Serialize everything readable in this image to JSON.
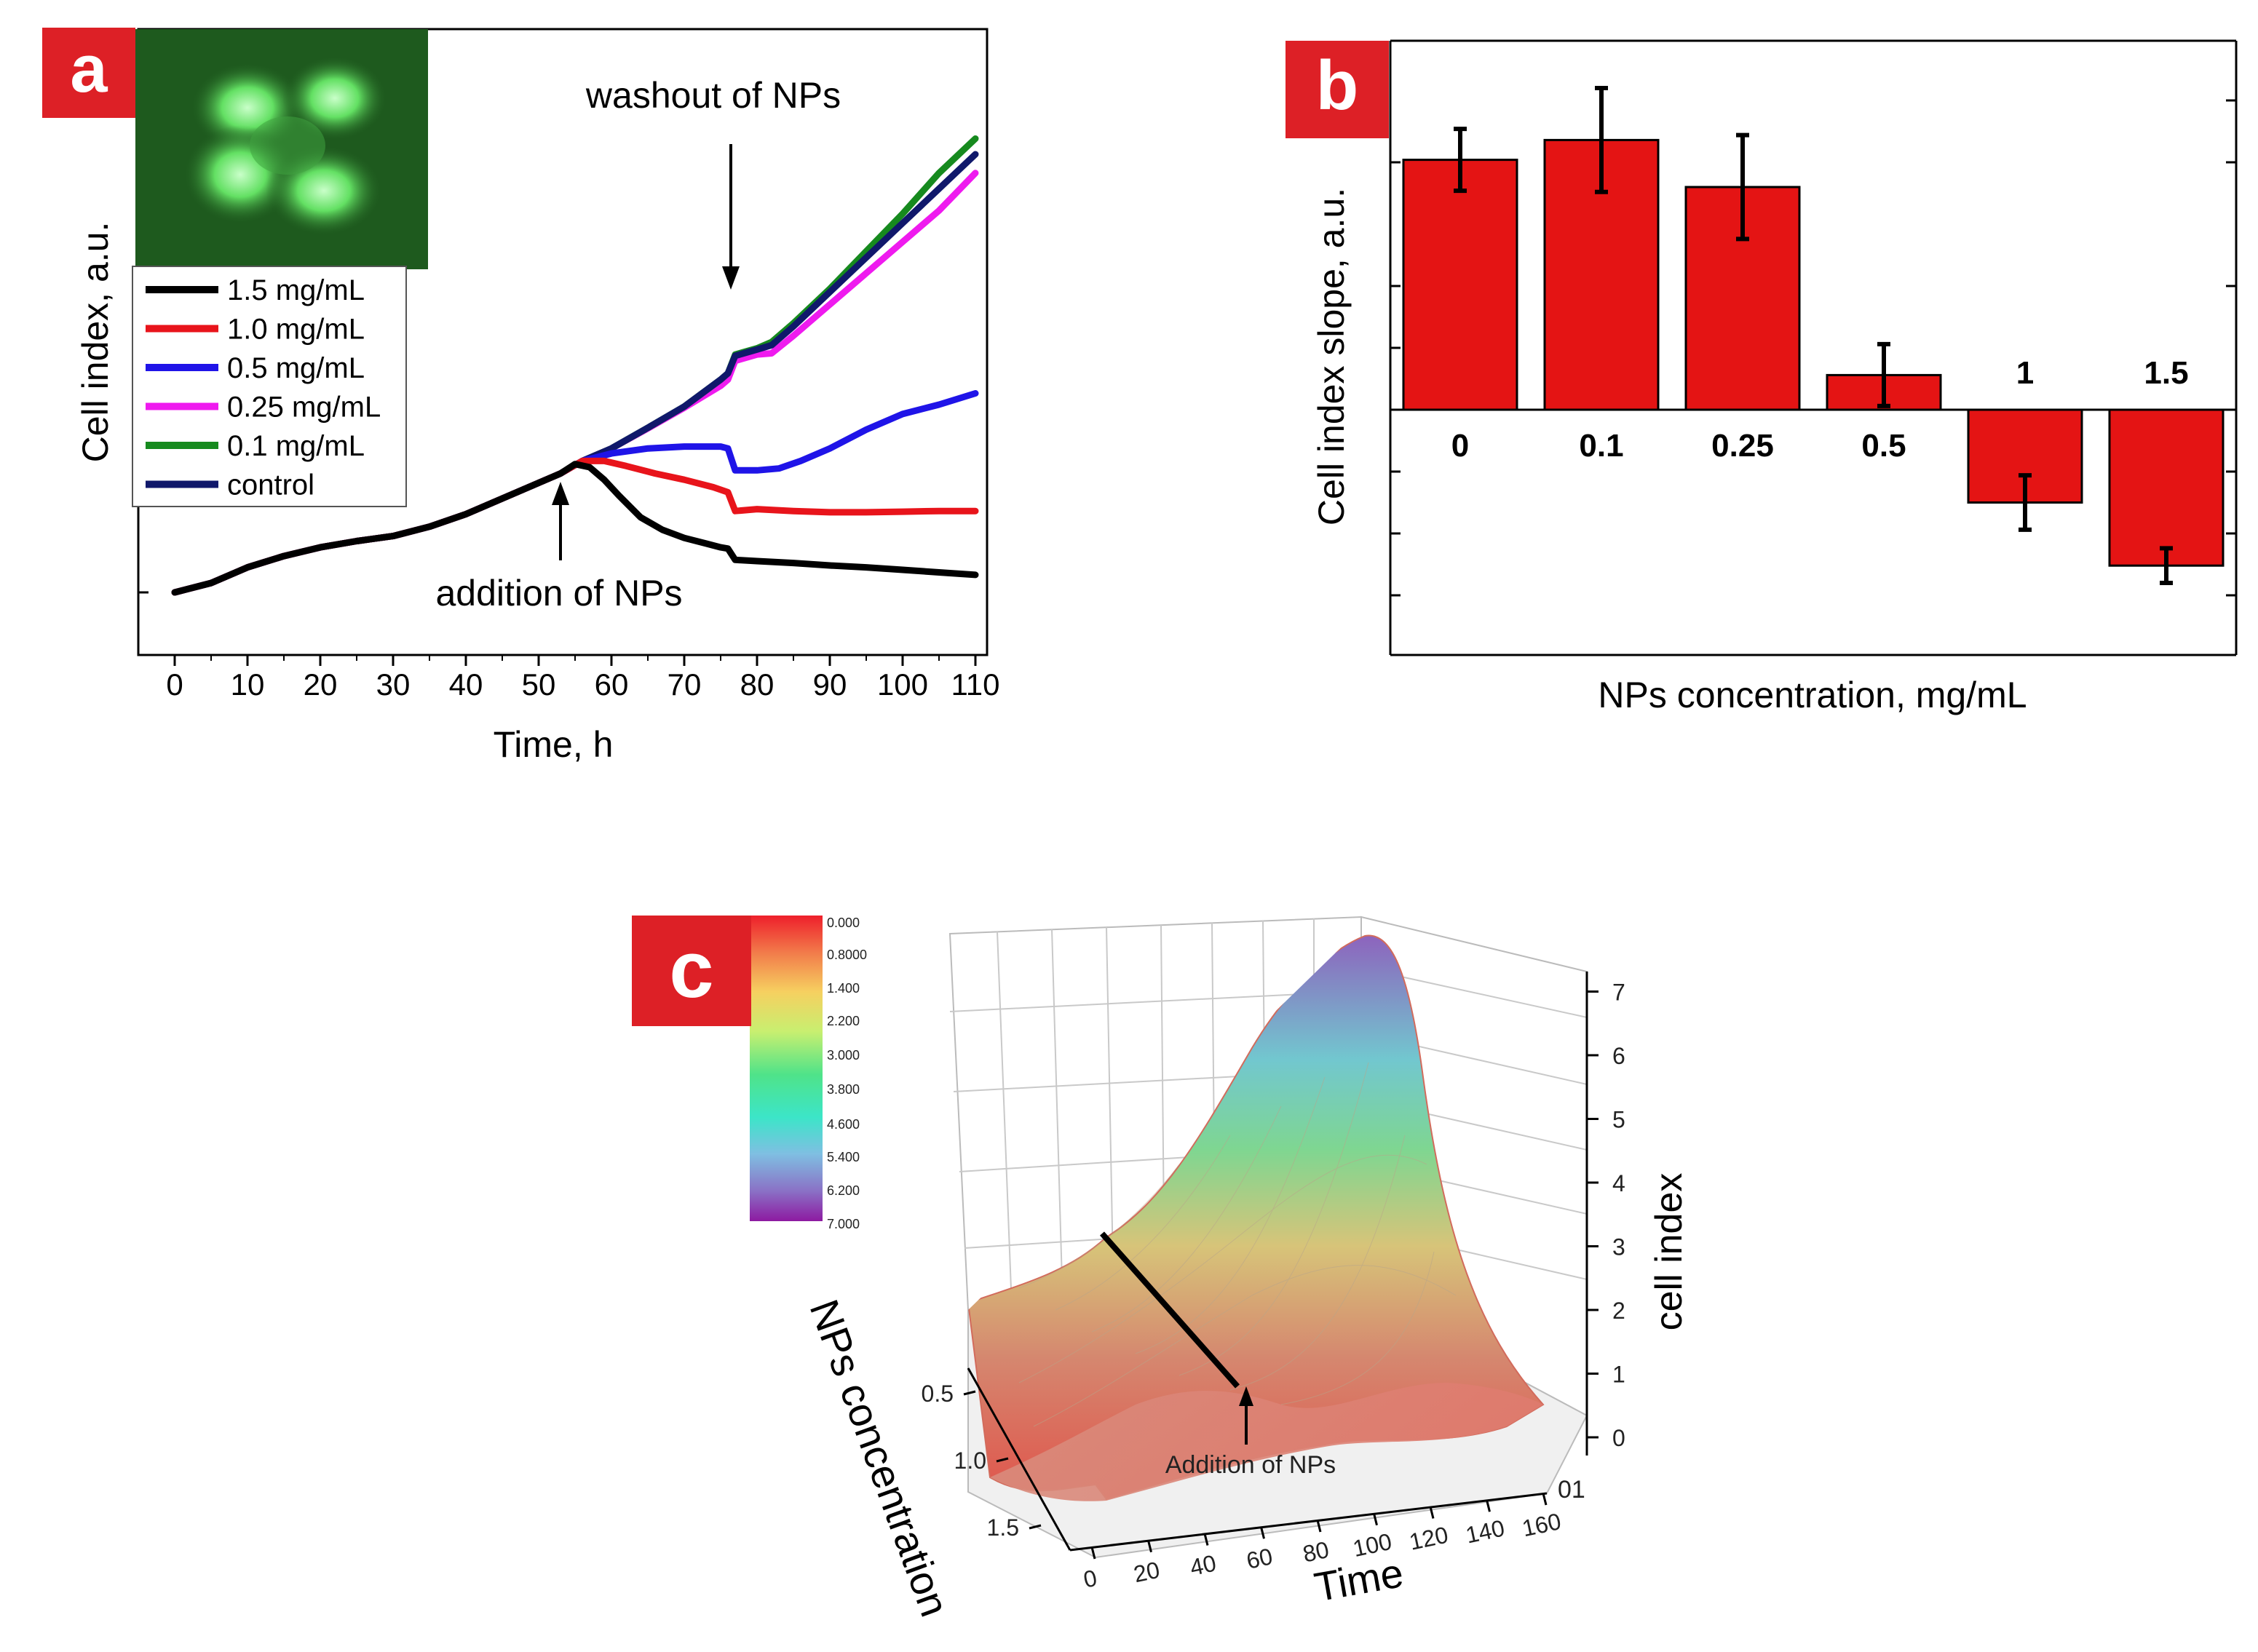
{
  "colors": {
    "badge": "#dd2026",
    "bar": "#e41414",
    "inset_bg": "#1e5a1e",
    "cell": "#7ef07e"
  },
  "chart_data": [
    {
      "panel": "a",
      "type": "line",
      "xlabel": "Time, h",
      "ylabel": "Cell index, a.u.",
      "xlim": [
        -5,
        110
      ],
      "ylim": [
        0,
        1.0
      ],
      "xticks": [
        0,
        10,
        20,
        30,
        40,
        50,
        60,
        70,
        80,
        90,
        100,
        110
      ],
      "legend": "top-left",
      "annotations": [
        "washout of NPs",
        "addition of NPs"
      ],
      "series": [
        {
          "name": "1.5 mg/mL",
          "color": "#000000",
          "x": [
            0,
            5,
            10,
            15,
            20,
            25,
            30,
            35,
            40,
            45,
            50,
            53,
            55,
            57,
            59,
            61,
            64,
            67,
            70,
            73,
            75,
            76,
            77,
            80,
            85,
            90,
            95,
            100,
            105,
            110
          ],
          "y": [
            0.1,
            0.115,
            0.14,
            0.158,
            0.172,
            0.182,
            0.19,
            0.205,
            0.225,
            0.25,
            0.275,
            0.29,
            0.305,
            0.3,
            0.28,
            0.255,
            0.22,
            0.2,
            0.187,
            0.178,
            0.172,
            0.17,
            0.152,
            0.15,
            0.147,
            0.143,
            0.14,
            0.136,
            0.132,
            0.128
          ]
        },
        {
          "name": "1.0 mg/mL",
          "color": "#e8141b",
          "x": [
            0,
            5,
            10,
            15,
            20,
            25,
            30,
            35,
            40,
            45,
            50,
            53,
            56,
            59,
            62,
            66,
            70,
            74,
            76,
            77,
            80,
            85,
            90,
            95,
            100,
            105,
            110
          ],
          "y": [
            0.1,
            0.115,
            0.14,
            0.158,
            0.172,
            0.182,
            0.19,
            0.205,
            0.225,
            0.25,
            0.275,
            0.29,
            0.31,
            0.31,
            0.302,
            0.29,
            0.28,
            0.268,
            0.26,
            0.23,
            0.233,
            0.23,
            0.228,
            0.228,
            0.229,
            0.23,
            0.23
          ]
        },
        {
          "name": "0.5 mg/mL",
          "color": "#1f14e8",
          "x": [
            0,
            5,
            10,
            15,
            20,
            25,
            30,
            35,
            40,
            45,
            50,
            53,
            56,
            60,
            65,
            70,
            75,
            76,
            77,
            80,
            83,
            86,
            90,
            95,
            100,
            105,
            110
          ],
          "y": [
            0.1,
            0.115,
            0.14,
            0.158,
            0.172,
            0.182,
            0.19,
            0.205,
            0.225,
            0.25,
            0.275,
            0.29,
            0.31,
            0.322,
            0.33,
            0.333,
            0.333,
            0.33,
            0.295,
            0.295,
            0.298,
            0.31,
            0.33,
            0.36,
            0.385,
            0.4,
            0.418
          ]
        },
        {
          "name": "0.25 mg/mL",
          "color": "#ef1aef",
          "x": [
            0,
            5,
            10,
            15,
            20,
            25,
            30,
            35,
            40,
            45,
            50,
            53,
            56,
            60,
            65,
            70,
            75,
            76,
            77,
            80,
            82,
            85,
            90,
            95,
            100,
            105,
            110
          ],
          "y": [
            0.1,
            0.115,
            0.14,
            0.158,
            0.172,
            0.182,
            0.19,
            0.205,
            0.225,
            0.25,
            0.275,
            0.29,
            0.31,
            0.33,
            0.362,
            0.395,
            0.43,
            0.44,
            0.47,
            0.48,
            0.482,
            0.51,
            0.56,
            0.61,
            0.66,
            0.71,
            0.77
          ]
        },
        {
          "name": "0.1 mg/mL",
          "color": "#168a1e",
          "x": [
            0,
            5,
            10,
            15,
            20,
            25,
            30,
            35,
            40,
            45,
            50,
            53,
            56,
            60,
            65,
            70,
            75,
            76,
            77,
            80,
            82,
            85,
            90,
            95,
            100,
            105,
            110
          ],
          "y": [
            0.1,
            0.115,
            0.14,
            0.158,
            0.172,
            0.182,
            0.19,
            0.205,
            0.225,
            0.25,
            0.275,
            0.29,
            0.31,
            0.33,
            0.363,
            0.397,
            0.44,
            0.45,
            0.48,
            0.49,
            0.5,
            0.53,
            0.585,
            0.645,
            0.705,
            0.77,
            0.825
          ]
        },
        {
          "name": "control",
          "color": "#10186b",
          "x": [
            0,
            5,
            10,
            15,
            20,
            25,
            30,
            35,
            40,
            45,
            50,
            53,
            56,
            60,
            65,
            70,
            75,
            76,
            77,
            80,
            82,
            85,
            90,
            95,
            100,
            105,
            110
          ],
          "y": [
            0.1,
            0.115,
            0.14,
            0.158,
            0.172,
            0.182,
            0.19,
            0.205,
            0.225,
            0.25,
            0.275,
            0.29,
            0.31,
            0.33,
            0.363,
            0.397,
            0.44,
            0.45,
            0.478,
            0.488,
            0.495,
            0.525,
            0.58,
            0.635,
            0.69,
            0.745,
            0.8
          ]
        }
      ]
    },
    {
      "panel": "b",
      "type": "bar",
      "xlabel": "NPs concentration, mg/mL",
      "ylabel": "Cell index slope, a.u.",
      "ylim": [
        -2.0,
        3.0
      ],
      "categories": [
        "0",
        "0.1",
        "0.25",
        "0.5",
        "1",
        "1.5"
      ],
      "values": [
        2.02,
        2.18,
        1.8,
        0.28,
        -0.75,
        -1.26
      ],
      "errors": [
        0.25,
        0.42,
        0.42,
        0.25,
        0.22,
        0.14
      ]
    },
    {
      "panel": "c",
      "type": "surface",
      "xlabel": "Time",
      "ylabel": "NPs concentration",
      "zlabel": "cell index",
      "annotation": "Addition of NPs",
      "x_ticks": [
        "0",
        "20",
        "40",
        "60",
        "80",
        "100",
        "120",
        "140",
        "160"
      ],
      "y_ticks": [
        "0.5",
        "1.0",
        "1.5"
      ],
      "z_ticks": [
        "0",
        "1",
        "2",
        "3",
        "4",
        "5",
        "6",
        "7"
      ],
      "corner_label": "01",
      "colorbar_labels": [
        "0.000",
        "0.8000",
        "1.400",
        "2.200",
        "3.000",
        "3.800",
        "4.600",
        "5.400",
        "6.200",
        "7.000"
      ]
    }
  ]
}
